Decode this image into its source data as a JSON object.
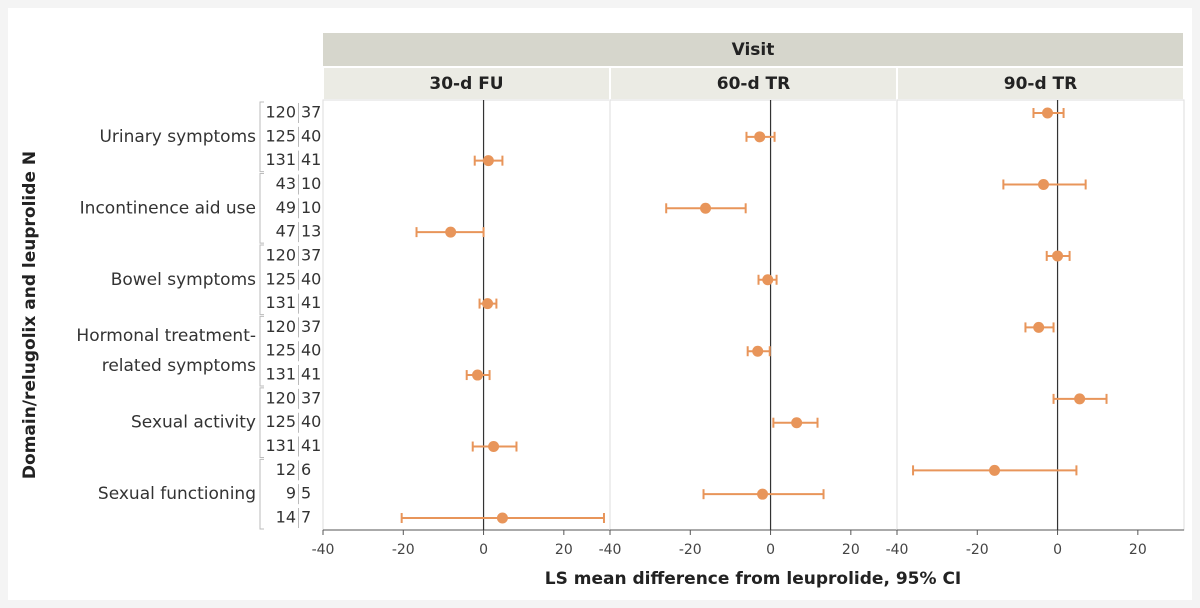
{
  "chart_data": {
    "type": "forest",
    "title": "Visit",
    "ylabel": "Domain/relugolix and leuprolide N",
    "xlabel": "LS mean difference from leuprolide, 95% CI",
    "domains": [
      [
        "Urinary symptoms"
      ],
      [
        "Incontinence aid use"
      ],
      [
        "Bowel symptoms"
      ],
      [
        "Hormonal treatment-",
        "related symptoms"
      ],
      [
        "Sexual activity"
      ],
      [
        "Sexual functioning"
      ]
    ],
    "n_relugolix": [
      120,
      125,
      131,
      43,
      49,
      47,
      120,
      125,
      131,
      120,
      125,
      131,
      120,
      125,
      131,
      12,
      9,
      14
    ],
    "n_leuprolide": [
      37,
      40,
      41,
      10,
      10,
      13,
      37,
      40,
      41,
      37,
      40,
      41,
      37,
      40,
      41,
      6,
      5,
      7
    ],
    "xlim": [
      -40,
      31.5
    ],
    "xticks": [
      -40,
      -20,
      0,
      20
    ],
    "color": "#e8955a",
    "series": [
      {
        "name": "30-d FU",
        "values": [
          null,
          null,
          1.2,
          null,
          null,
          -8.2,
          null,
          null,
          1,
          null,
          null,
          -1.5,
          null,
          null,
          2.5,
          null,
          null,
          4.7
        ],
        "lower": [
          null,
          null,
          -2.2,
          null,
          null,
          -16.7,
          null,
          null,
          -1,
          null,
          null,
          -4.2,
          null,
          null,
          -2.7,
          null,
          null,
          -20.4
        ],
        "upper": [
          null,
          null,
          4.7,
          null,
          null,
          0,
          null,
          null,
          3.2,
          null,
          null,
          1.5,
          null,
          null,
          8.2,
          null,
          null,
          30
        ]
      },
      {
        "name": "60-d TR",
        "values": [
          null,
          -2.7,
          null,
          null,
          -16.2,
          null,
          null,
          -0.7,
          null,
          null,
          -3.2,
          null,
          null,
          6.5,
          null,
          null,
          -2,
          null
        ],
        "lower": [
          null,
          -6,
          null,
          null,
          -26,
          null,
          null,
          -3,
          null,
          null,
          -5.7,
          null,
          null,
          0.7,
          null,
          null,
          -16.7,
          null
        ],
        "upper": [
          null,
          1,
          null,
          null,
          -6.2,
          null,
          null,
          1.5,
          null,
          null,
          -0.2,
          null,
          null,
          11.7,
          null,
          null,
          13.2,
          null
        ]
      },
      {
        "name": "90-d TR",
        "values": [
          -2.5,
          null,
          null,
          -3.5,
          null,
          null,
          0,
          null,
          null,
          -4.7,
          null,
          null,
          5.5,
          null,
          null,
          -15.7,
          null,
          null
        ],
        "lower": [
          -6,
          null,
          null,
          -13.5,
          null,
          null,
          -2.7,
          null,
          null,
          -8,
          null,
          null,
          -1,
          null,
          null,
          -36,
          null,
          null
        ],
        "upper": [
          1.5,
          null,
          null,
          7,
          null,
          null,
          3,
          null,
          null,
          -1,
          null,
          null,
          12.2,
          null,
          null,
          4.7,
          null,
          null
        ]
      }
    ]
  }
}
